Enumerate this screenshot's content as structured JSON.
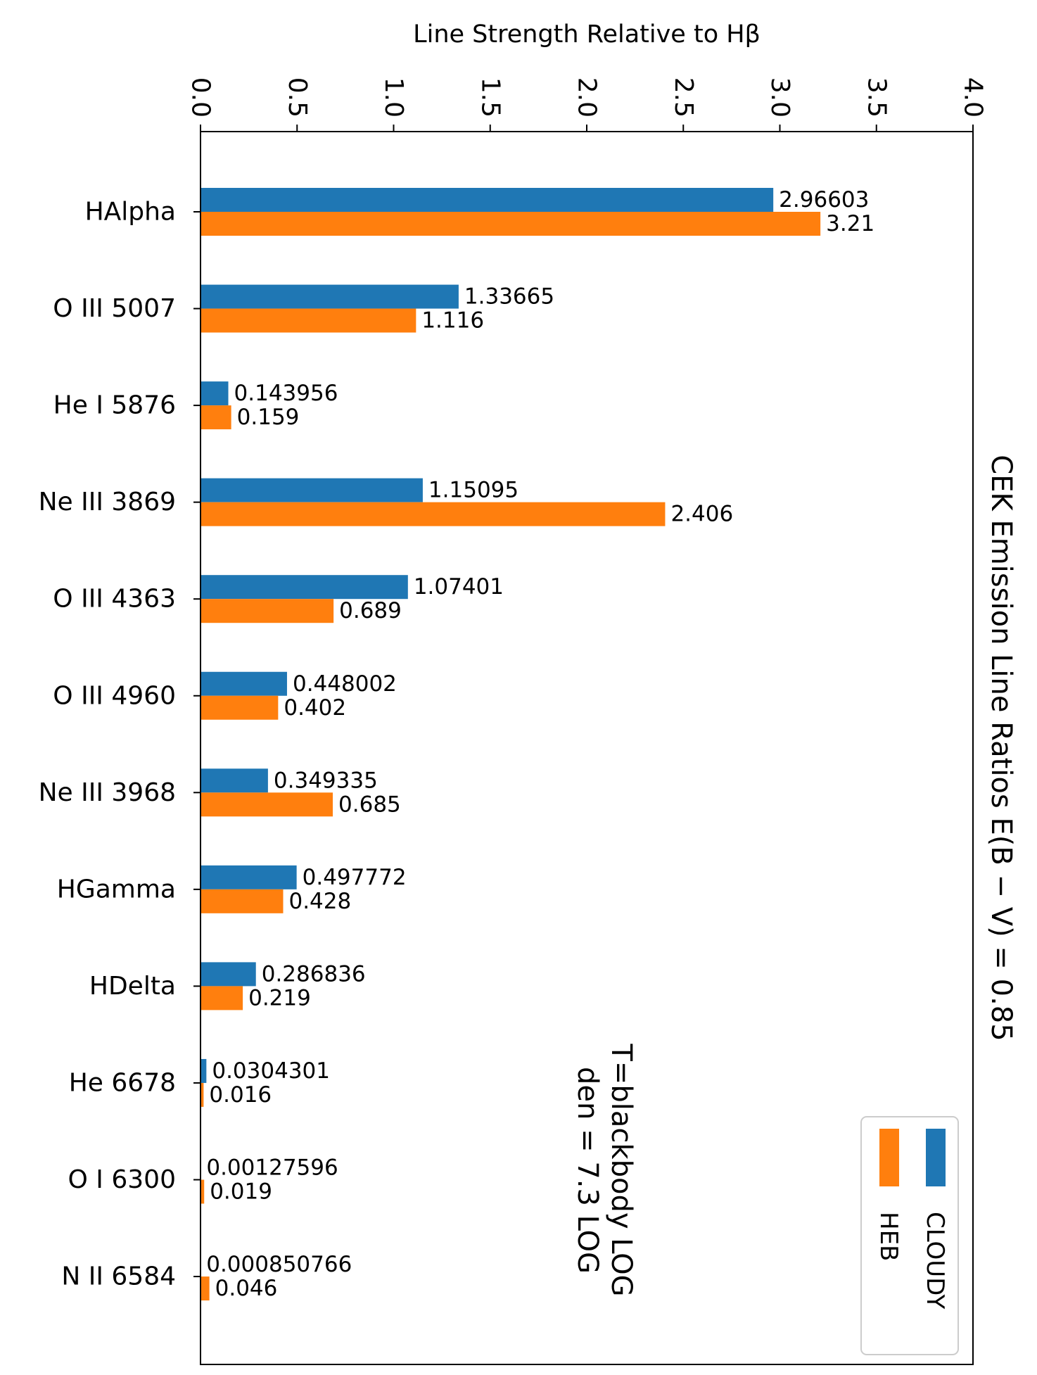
{
  "chart_data": {
    "type": "bar",
    "orientation": "horizontal",
    "title": "CEK Emission Line Ratios E(B − V) = 0.85",
    "xlabel": "Line Strength Relative to Hβ",
    "ylabel": "",
    "xlim": [
      0,
      4.0
    ],
    "xticks": [
      "0.0",
      "0.5",
      "1.0",
      "1.5",
      "2.0",
      "2.5",
      "3.0",
      "3.5",
      "4.0"
    ],
    "categories": [
      "HAlpha",
      "O III 5007",
      "He I 5876",
      "Ne III 3869",
      "O III 4363",
      "O III 4960",
      "Ne III 3968",
      "HGamma",
      "HDelta",
      "He 6678",
      "O I 6300",
      "N II 6584"
    ],
    "series": [
      {
        "name": "CLOUDY",
        "color": "#1f77b4",
        "values": [
          2.96603,
          1.33665,
          0.143956,
          1.15095,
          1.07401,
          0.448002,
          0.349335,
          0.497772,
          0.286836,
          0.0304301,
          0.00127596,
          0.000850766
        ],
        "labels": [
          "2.96603",
          "1.33665",
          "0.143956",
          "1.15095",
          "1.07401",
          "0.448002",
          "0.349335",
          "0.497772",
          "0.286836",
          "0.0304301",
          "0.00127596",
          "0.000850766"
        ]
      },
      {
        "name": "HEB",
        "color": "#ff7f0e",
        "values": [
          3.21,
          1.116,
          0.159,
          2.406,
          0.689,
          0.402,
          0.685,
          0.428,
          0.219,
          0.016,
          0.019,
          0.046
        ],
        "labels": [
          "3.21",
          "1.116",
          "0.159",
          "2.406",
          "0.689",
          "0.402",
          "0.685",
          "0.428",
          "0.219",
          "0.016",
          "0.019",
          "0.046"
        ]
      }
    ],
    "annotation": [
      "T=blackbody LOG",
      "den = 7.3 LOG"
    ],
    "legend_position": "bottom-right",
    "grid": false
  }
}
